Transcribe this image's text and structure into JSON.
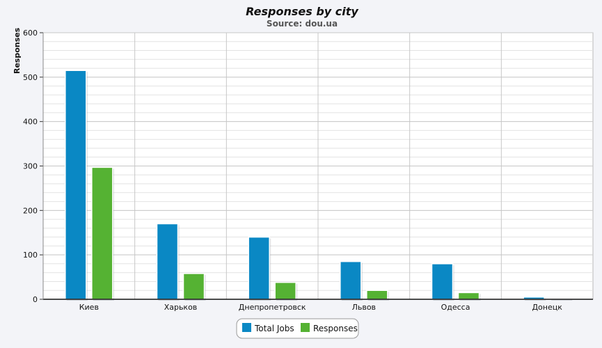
{
  "colors": {
    "total_jobs": "#0a88c4",
    "responses": "#55b233",
    "grid": "#c7c7c7",
    "plot_bg": "#ffffff"
  },
  "chart_data": {
    "type": "bar",
    "title": "Responses by city",
    "subtitle": "Source: dou.ua",
    "xlabel": "",
    "ylabel": "Responses",
    "ylim": [
      0,
      600
    ],
    "yticks": [
      0,
      100,
      200,
      300,
      400,
      500,
      600
    ],
    "categories": [
      "Киев",
      "Харьков",
      "Днепропетровск",
      "Львов",
      "Одесса",
      "Донецк"
    ],
    "series": [
      {
        "name": "Total Jobs",
        "values": [
          515,
          170,
          140,
          85,
          80,
          5
        ]
      },
      {
        "name": "Responses",
        "values": [
          297,
          58,
          38,
          20,
          15,
          2
        ]
      }
    ],
    "grid": true,
    "legend": "bottom-center"
  }
}
